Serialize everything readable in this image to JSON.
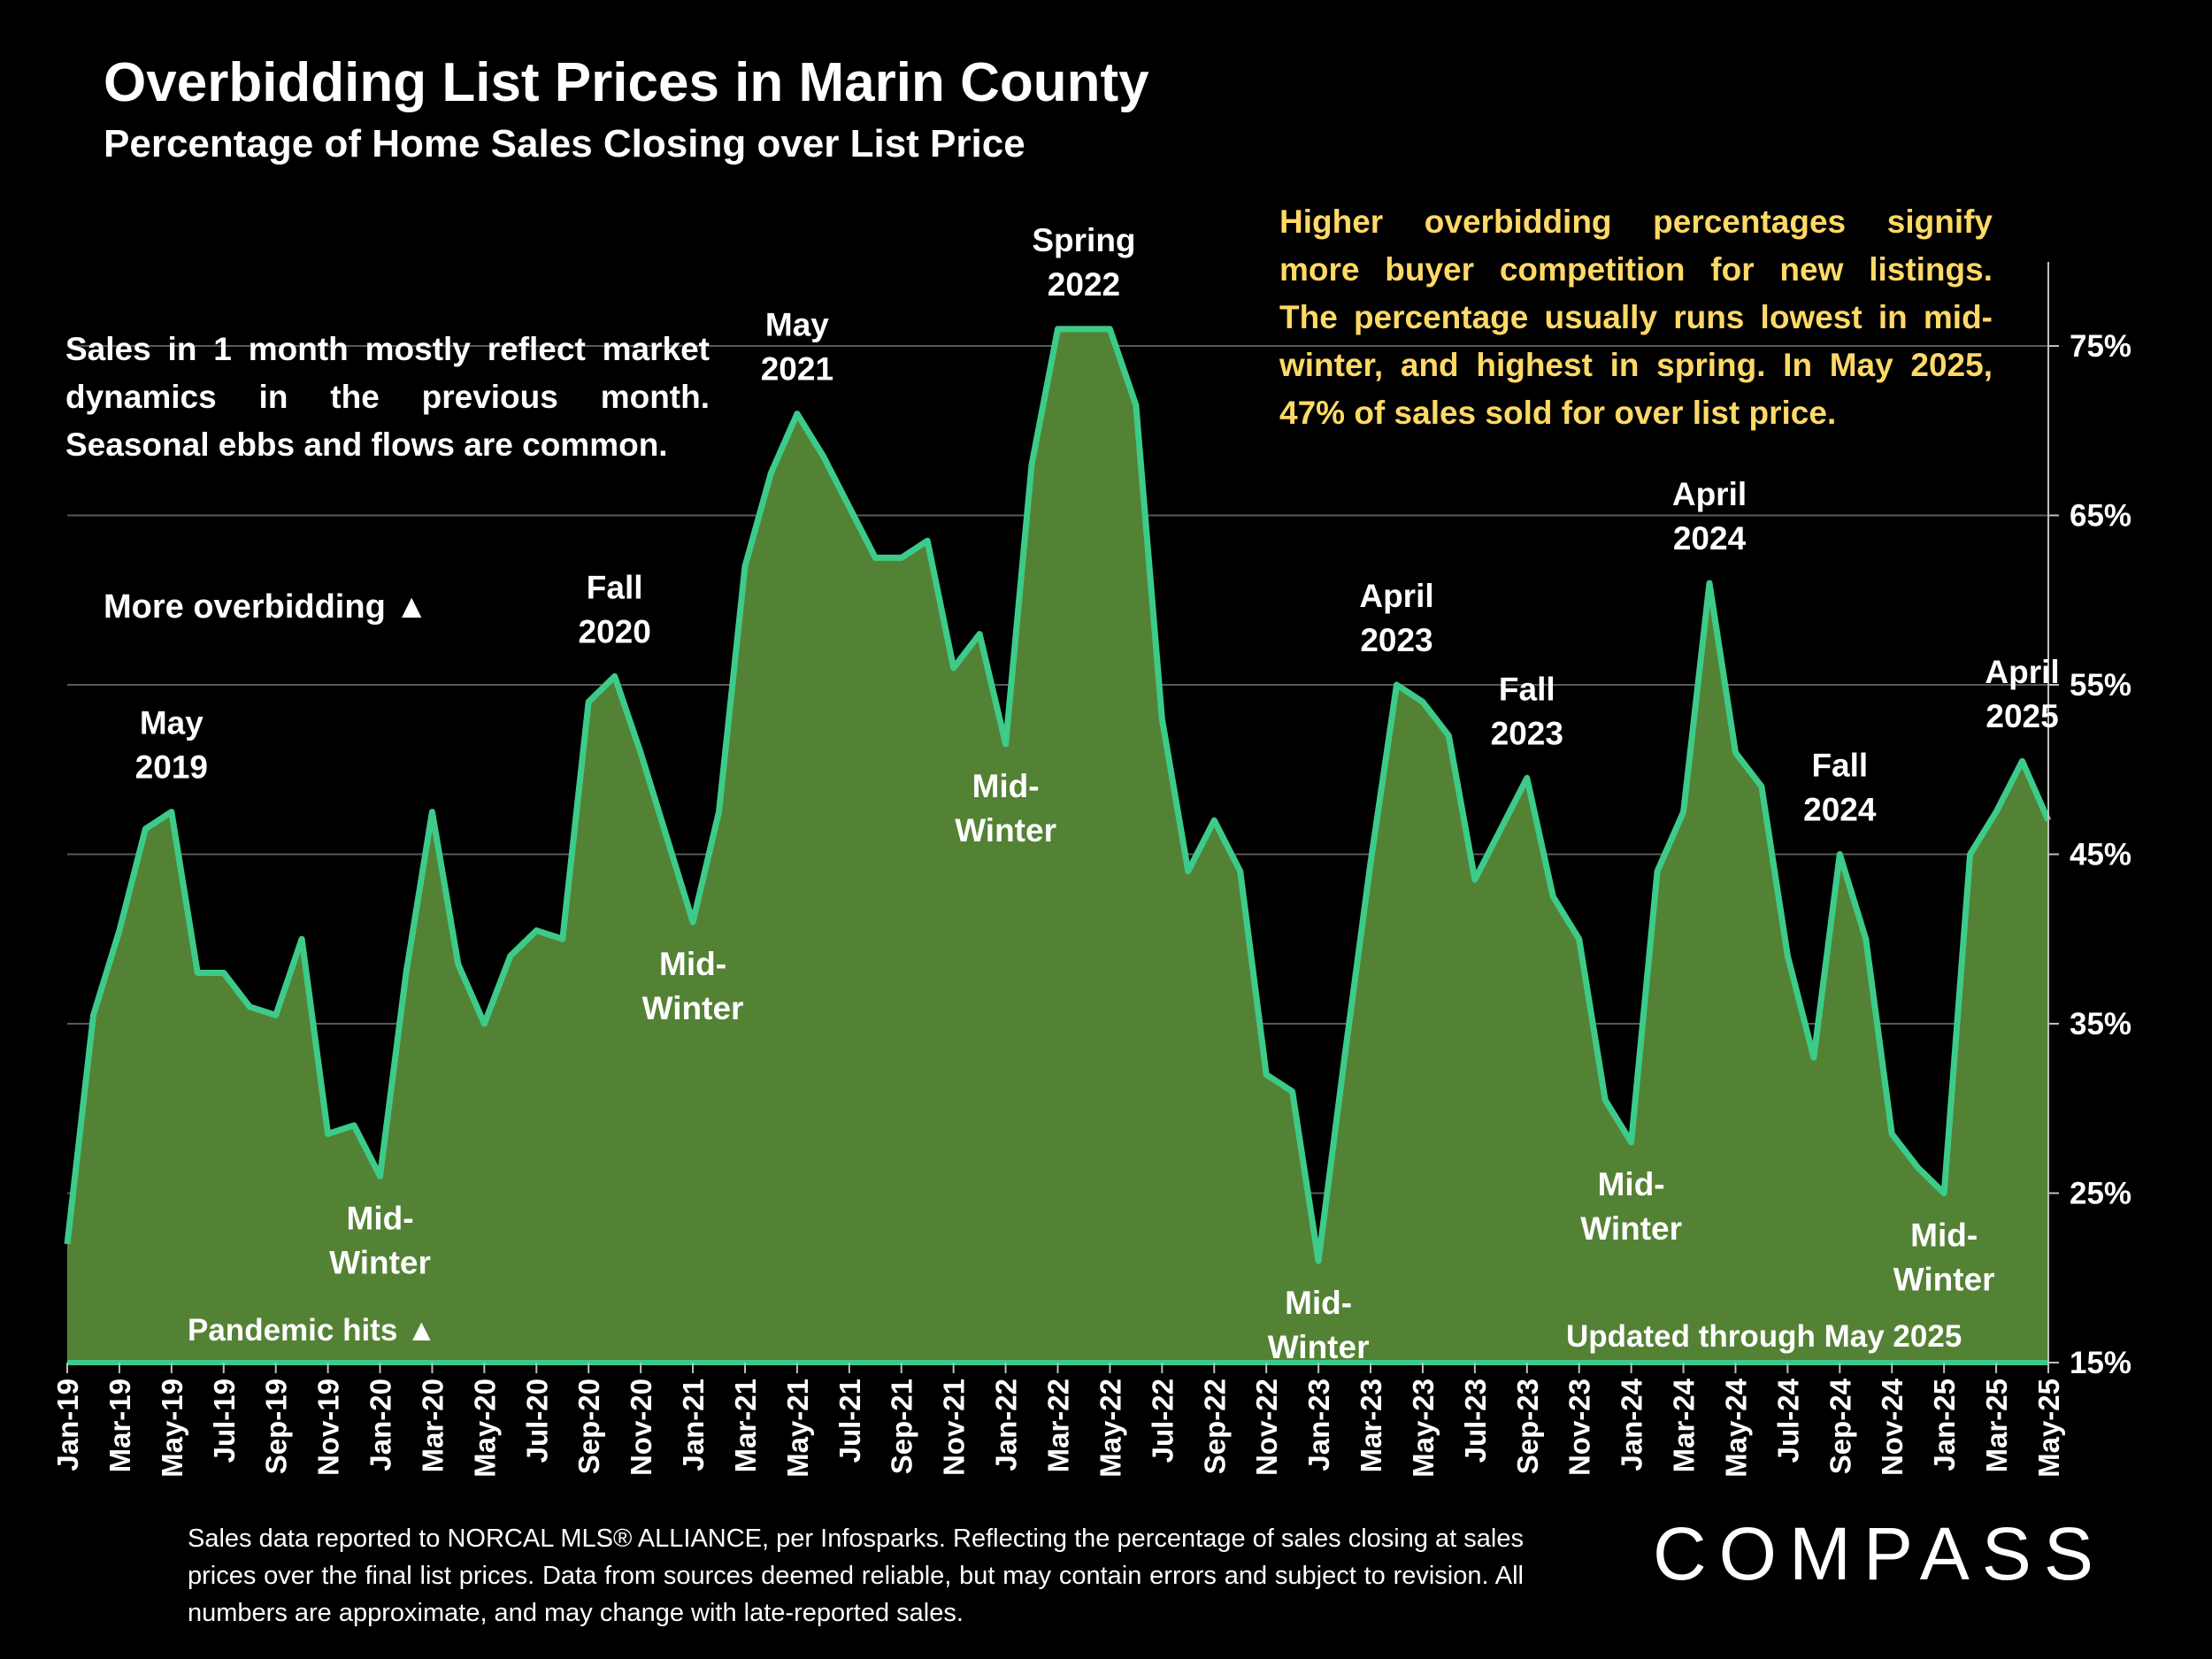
{
  "title": "Overbidding List Prices in Marin County",
  "subtitle": "Percentage of Home Sales Closing over List Price",
  "note_left_lines": [
    "Sales in 1 month mostly reflect market",
    "dynamics in the previous month.",
    "Seasonal ebbs and flows are common."
  ],
  "note_right_lines": [
    "Higher overbidding percentages signify",
    "more buyer competition for new listings.",
    "The percentage usually runs lowest in mid-",
    "winter, and highest in spring. In May 2025,",
    "47% of sales sold for over list price."
  ],
  "more_overbidding": "More overbidding ▲",
  "pandemic": "Pandemic hits ▲",
  "updated": "Updated through May 2025",
  "footer": "Sales data reported to NORCAL MLS® ALLIANCE, per Infosparks. Reflecting the percentage of sales closing at sales prices over the final list prices. Data from sources deemed reliable, but may contain errors and subject to revision. All numbers are approximate, and may change with late-reported sales.",
  "brand": "COMPASS",
  "colors": {
    "area": "#548235",
    "line": "#3DCB8A",
    "note_right": "#FFD966",
    "grid": "#595959"
  },
  "chart_data": {
    "type": "area",
    "title": "Overbidding List Prices in Marin County",
    "ylabel": "Percentage of Home Sales Closing over List Price",
    "ylim": [
      15,
      80
    ],
    "yticks": [
      "15%",
      "25%",
      "35%",
      "45%",
      "55%",
      "65%",
      "75%"
    ],
    "ytick_values": [
      15,
      25,
      35,
      45,
      55,
      65,
      75
    ],
    "grid": true,
    "xtick_labels": [
      "Jan-19",
      "Mar-19",
      "May-19",
      "Jul-19",
      "Sep-19",
      "Nov-19",
      "Jan-20",
      "Mar-20",
      "May-20",
      "Jul-20",
      "Sep-20",
      "Nov-20",
      "Jan-21",
      "Mar-21",
      "May-21",
      "Jul-21",
      "Sep-21",
      "Nov-21",
      "Jan-22",
      "Mar-22",
      "May-22",
      "Jul-22",
      "Sep-22",
      "Nov-22",
      "Jan-23",
      "Mar-23",
      "May-23",
      "Jul-23",
      "Sep-23",
      "Nov-23",
      "Jan-24",
      "Mar-24",
      "May-24",
      "Jul-24",
      "Sep-24",
      "Nov-24",
      "Jan-25",
      "Mar-25",
      "May-25"
    ],
    "values": [
      22,
      35.5,
      40.5,
      46.5,
      47.5,
      38,
      38,
      36,
      35.5,
      40,
      28.5,
      29,
      26,
      38,
      47.5,
      38.5,
      35,
      39,
      40.5,
      40,
      54,
      55.5,
      51,
      46,
      41,
      47.5,
      62,
      67.5,
      71,
      68.5,
      65.5,
      62.5,
      62.5,
      63.5,
      56,
      58,
      51.5,
      68,
      76,
      76,
      76,
      71.5,
      53,
      44,
      47,
      44,
      32,
      31,
      21,
      33,
      44.5,
      55,
      54,
      52,
      43.5,
      46.5,
      49.5,
      42.5,
      40,
      30.5,
      28,
      44,
      47.5,
      61,
      51,
      49,
      39,
      33,
      45,
      40,
      28.5,
      26.5,
      25,
      45,
      47.5,
      50.5,
      47
    ],
    "annotations": [
      {
        "lines": [
          "May",
          "2019"
        ],
        "index": 4
      },
      {
        "lines": [
          "Mid-",
          "Winter"
        ],
        "index": 12
      },
      {
        "lines": [
          "Fall",
          "2020"
        ],
        "index": 21
      },
      {
        "lines": [
          "Mid-",
          "Winter"
        ],
        "index": 24
      },
      {
        "lines": [
          "May",
          "2021"
        ],
        "index": 28
      },
      {
        "lines": [
          "Mid-",
          "Winter"
        ],
        "index": 36
      },
      {
        "lines": [
          "Spring",
          "2022"
        ],
        "index": 39
      },
      {
        "lines": [
          "Mid-",
          "Winter"
        ],
        "index": 48
      },
      {
        "lines": [
          "April",
          "2023"
        ],
        "index": 51
      },
      {
        "lines": [
          "Fall",
          "2023"
        ],
        "index": 56
      },
      {
        "lines": [
          "Mid-",
          "Winter"
        ],
        "index": 60
      },
      {
        "lines": [
          "April",
          "2024"
        ],
        "index": 63
      },
      {
        "lines": [
          "Fall",
          "2024"
        ],
        "index": 68
      },
      {
        "lines": [
          "Mid-",
          "Winter"
        ],
        "index": 72
      },
      {
        "lines": [
          "April",
          "2025"
        ],
        "index": 75
      }
    ]
  }
}
